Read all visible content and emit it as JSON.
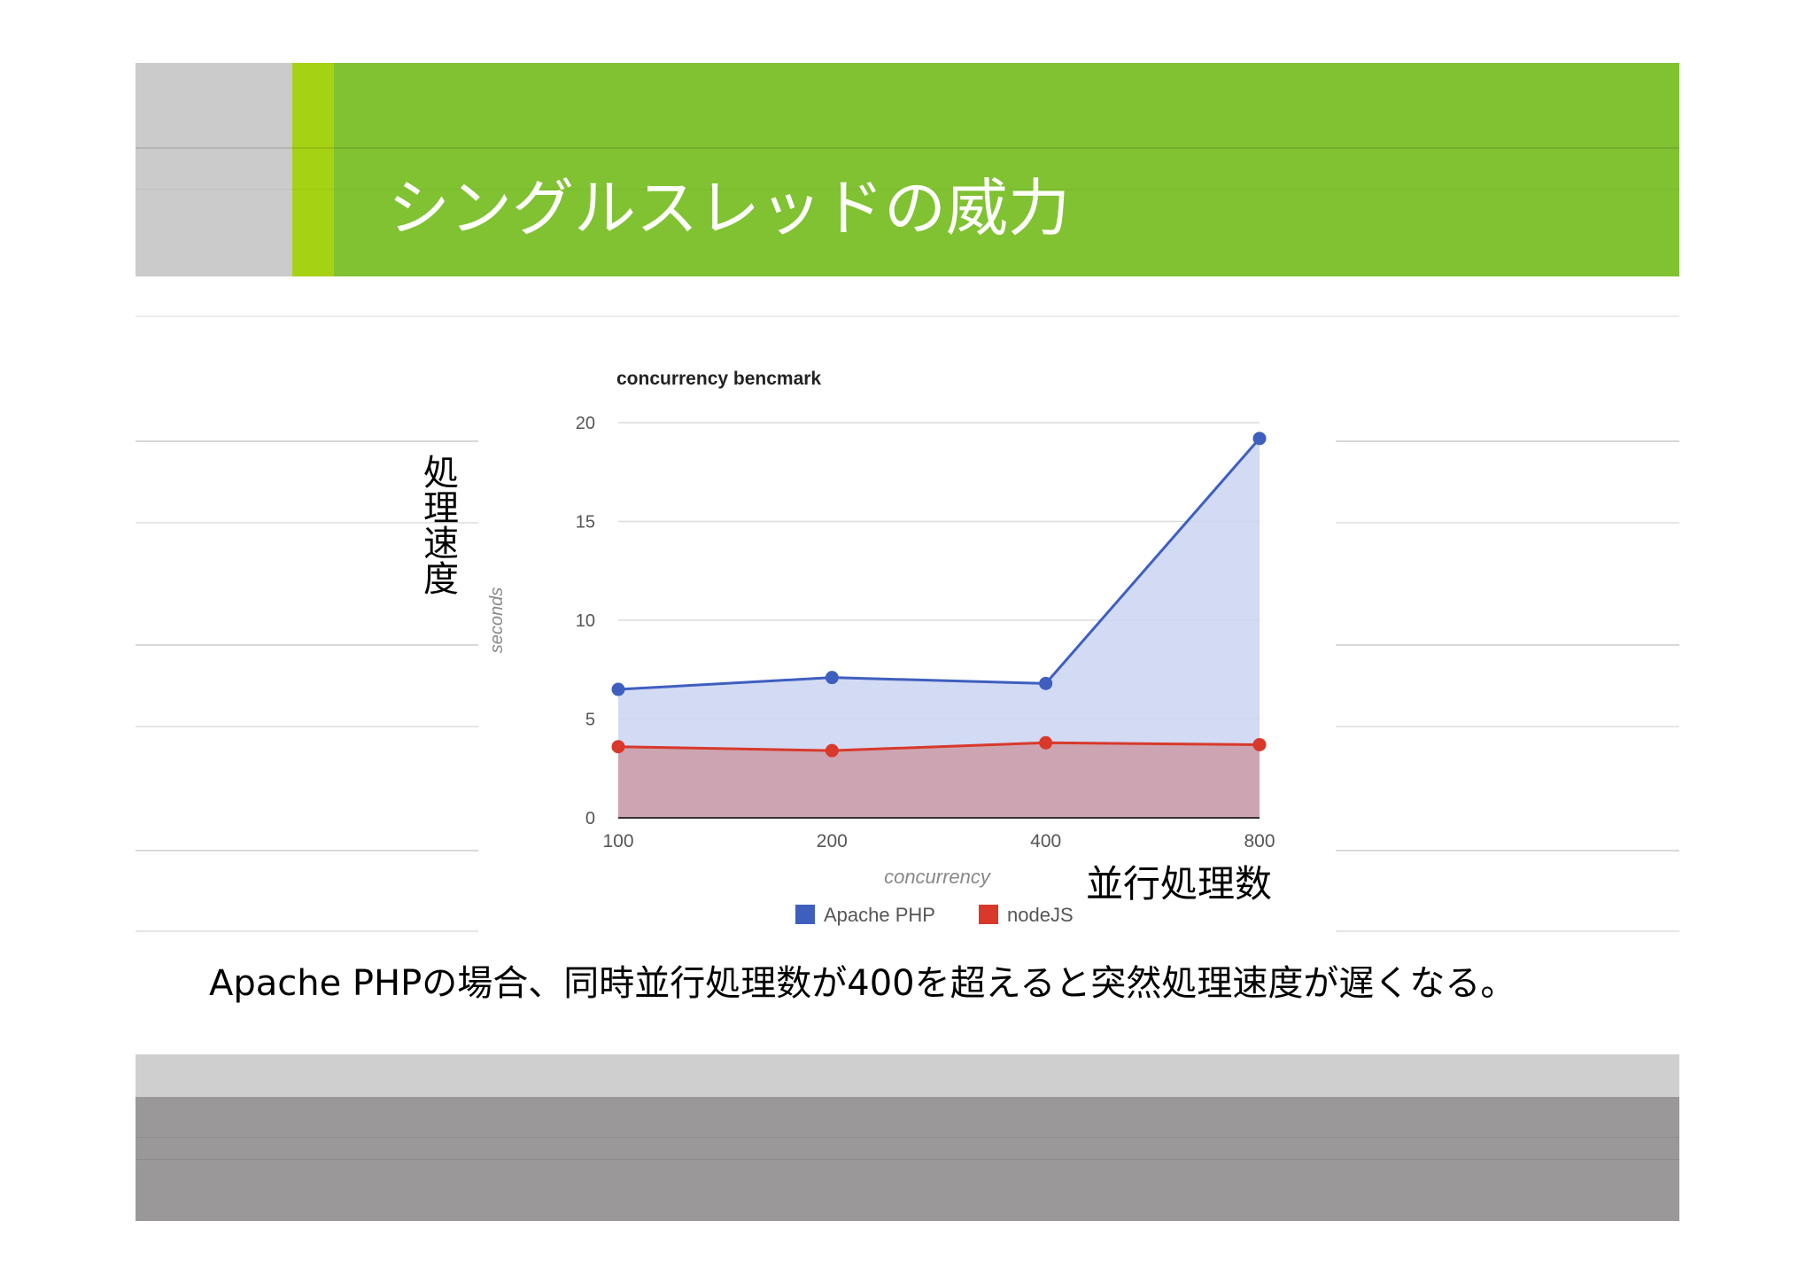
{
  "slide": {
    "title": "シングルスレッドの威力",
    "y_annotation": "処理速度",
    "x_annotation": "並行処理数",
    "caption": "Apache PHPの場合、同時並行処理数が400を超えると突然処理速度が遅くなる。"
  },
  "colors": {
    "header_green": "#80c232",
    "header_lime": "#a6d214",
    "header_gray": "#cbcbcb",
    "footer_light": "#cfcfcf",
    "footer_dark": "#9a9898",
    "series_apache": "#3f5fbf",
    "series_node": "#d8392b",
    "fill_apache": "#cad3f2",
    "fill_node": "#cca2ae"
  },
  "chart_data": {
    "type": "area",
    "title": "concurrency bencmark",
    "xlabel": "concurrency",
    "ylabel": "seconds",
    "categories": [
      "100",
      "200",
      "400",
      "800"
    ],
    "ylim": [
      0,
      20
    ],
    "yticks": [
      "0",
      "5",
      "10",
      "15",
      "20"
    ],
    "grid": true,
    "legend_position": "bottom",
    "series": [
      {
        "name": "Apache PHP",
        "values": [
          6.5,
          7.1,
          6.8,
          19.2
        ]
      },
      {
        "name": "nodeJS",
        "values": [
          3.6,
          3.4,
          3.8,
          3.7
        ]
      }
    ]
  }
}
